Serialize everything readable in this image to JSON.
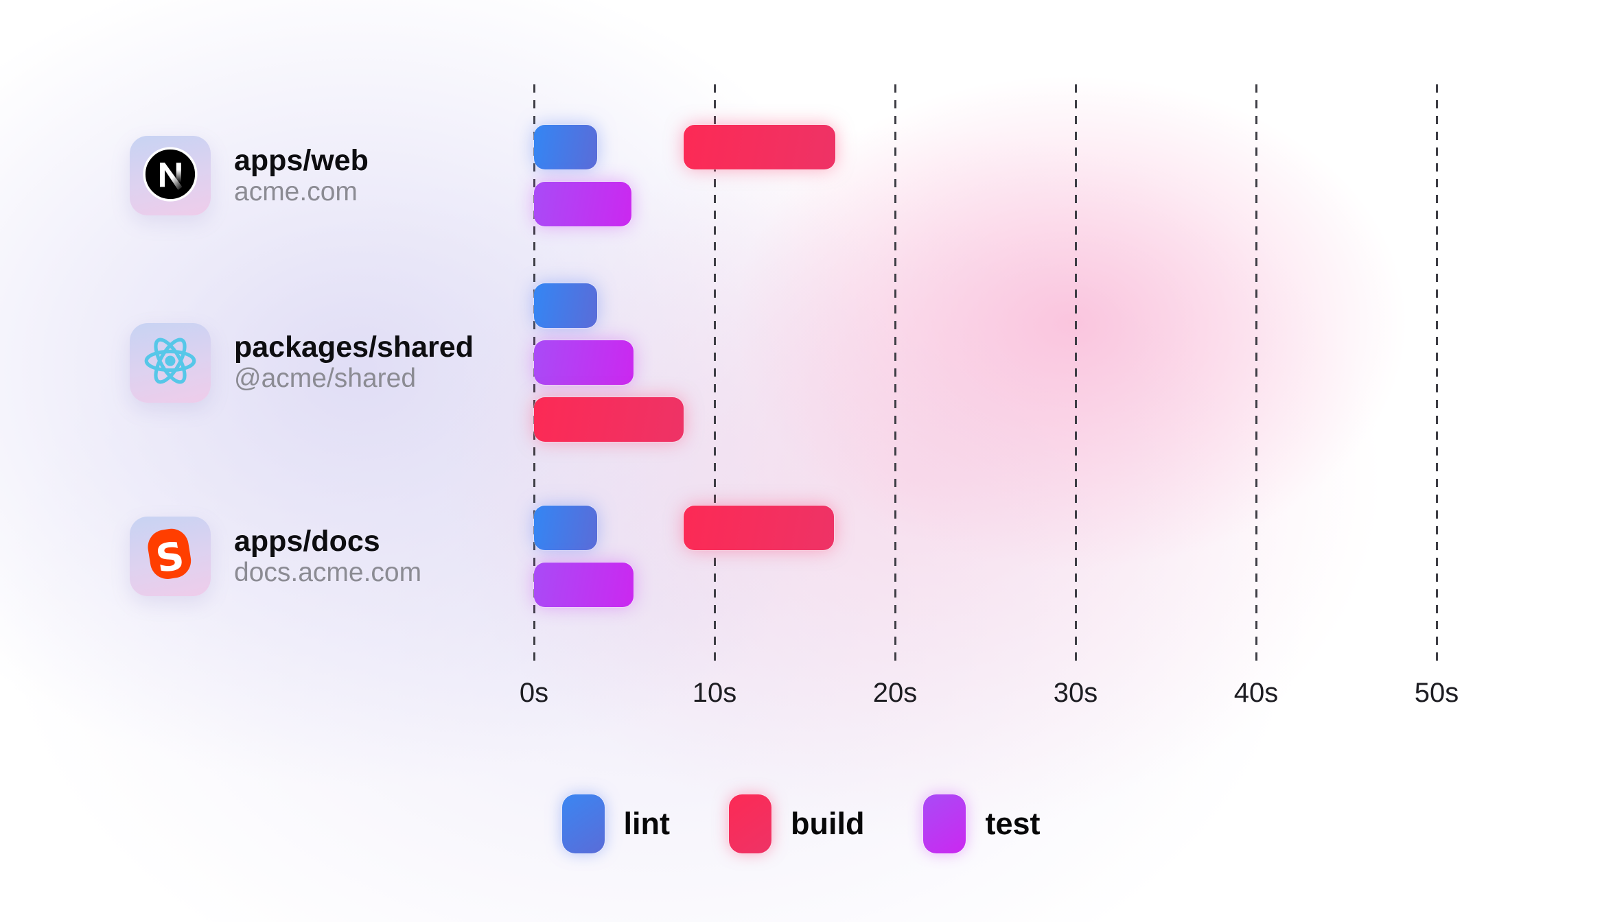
{
  "chart_data": {
    "type": "gantt",
    "x_axis": {
      "unit": "seconds",
      "ticks": [
        0,
        10,
        20,
        30,
        40,
        50
      ],
      "tick_labels": [
        "0s",
        "10s",
        "20s",
        "30s",
        "40s",
        "50s"
      ],
      "range": [
        0,
        52
      ],
      "gridlines": "dashed-vertical"
    },
    "task_colors": {
      "lint": {
        "from": "#3486f4",
        "to": "#5a6cd8"
      },
      "build": {
        "from": "#fc2a55",
        "to": "#ee3366"
      },
      "test": {
        "from": "#a94bf6",
        "to": "#cb28f0"
      }
    },
    "groups": [
      {
        "title": "apps/web",
        "subtitle": "acme.com",
        "icon": "nextjs",
        "lanes": [
          [
            {
              "task": "lint",
              "start": 0,
              "end": 3.5
            },
            {
              "task": "build",
              "start": 8.3,
              "end": 16.7
            }
          ],
          [
            {
              "task": "test",
              "start": 0,
              "end": 5.4
            }
          ]
        ]
      },
      {
        "title": "packages/shared",
        "subtitle": "@acme/shared",
        "icon": "react",
        "lanes": [
          [
            {
              "task": "lint",
              "start": 0,
              "end": 3.5
            }
          ],
          [
            {
              "task": "test",
              "start": 0,
              "end": 5.5
            }
          ],
          [
            {
              "task": "build",
              "start": 0,
              "end": 8.3
            }
          ]
        ]
      },
      {
        "title": "apps/docs",
        "subtitle": "docs.acme.com",
        "icon": "svelte",
        "lanes": [
          [
            {
              "task": "lint",
              "start": 0,
              "end": 3.5
            },
            {
              "task": "build",
              "start": 8.3,
              "end": 16.6
            }
          ],
          [
            {
              "task": "test",
              "start": 0,
              "end": 5.5
            }
          ]
        ]
      }
    ],
    "legend": [
      {
        "label": "lint"
      },
      {
        "label": "build"
      },
      {
        "label": "test"
      }
    ],
    "icon_colors": {
      "nextjs": "#000000",
      "react": "#56c7e8",
      "svelte": "#ff3e00"
    }
  }
}
